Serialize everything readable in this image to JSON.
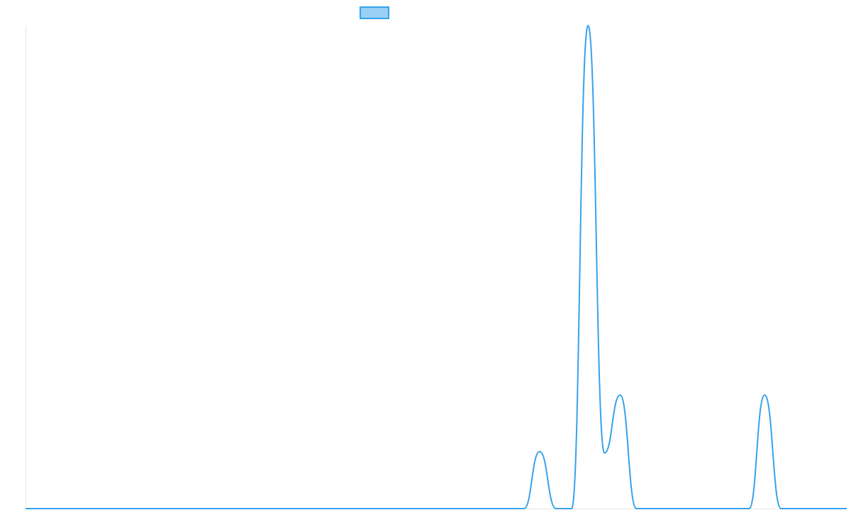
{
  "chart_data": {
    "type": "line",
    "title": "",
    "xlabel": "",
    "ylabel": "",
    "xlim": [
      0,
      1
    ],
    "ylim": [
      0,
      1
    ],
    "grid": false,
    "legend": {
      "placement": "top-center",
      "entries": [
        {
          "label": "",
          "swatch_fill": "#9ad0f5",
          "swatch_stroke": "#36a2eb"
        }
      ]
    },
    "series": [
      {
        "color": "#36a2eb",
        "points": [
          {
            "x": 0.0,
            "y": 0.0
          },
          {
            "x": 0.607,
            "y": 0.0
          },
          {
            "x": 0.626,
            "y": 0.118
          },
          {
            "x": 0.646,
            "y": 0.0
          },
          {
            "x": 0.665,
            "y": 0.0
          },
          {
            "x": 0.685,
            "y": 1.0
          },
          {
            "x": 0.705,
            "y": 0.115
          },
          {
            "x": 0.724,
            "y": 0.235
          },
          {
            "x": 0.744,
            "y": 0.0
          },
          {
            "x": 0.881,
            "y": 0.0
          },
          {
            "x": 0.9,
            "y": 0.235
          },
          {
            "x": 0.92,
            "y": 0.0
          },
          {
            "x": 1.0,
            "y": 0.0
          }
        ]
      }
    ]
  }
}
